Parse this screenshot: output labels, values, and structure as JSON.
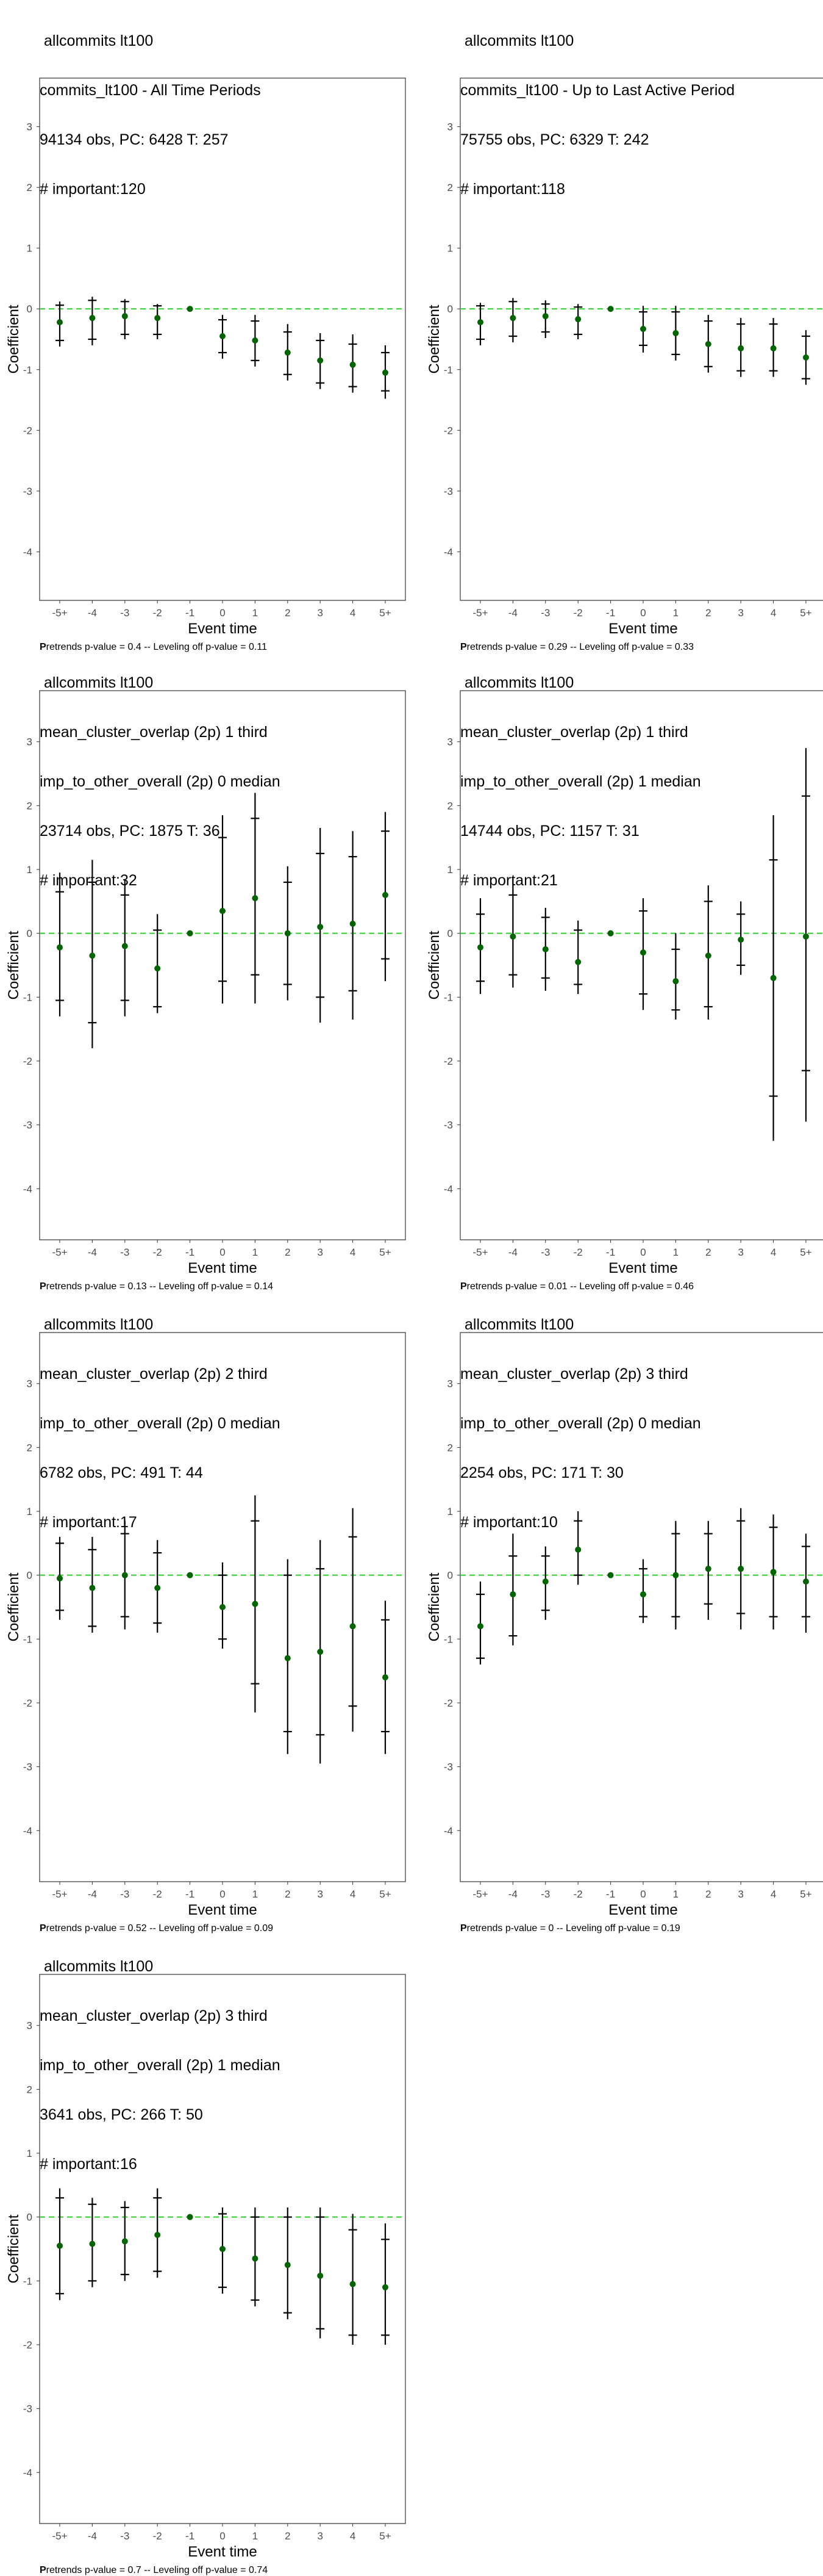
{
  "style": {
    "point_color": "#006400",
    "zero_line_color": "#33cc33",
    "bar_color": "#000000"
  },
  "chart_data": [
    {
      "type": "scatter",
      "title_lines": [
        "allcommits lt100",
        "commits_lt100 - All Time Periods",
        "94134 obs, PC: 6428 T: 257",
        "# important:120"
      ],
      "xlabel": "Event time",
      "ylabel": "Coefficient",
      "categories": [
        "-5+",
        "-4",
        "-3",
        "-2",
        "-1",
        "0",
        "1",
        "2",
        "3",
        "4",
        "5+"
      ],
      "ylim": [
        -4.8,
        3.8
      ],
      "yticks": [
        -4,
        -3,
        -2,
        -1,
        0,
        1,
        2,
        3
      ],
      "grid": false,
      "values": [
        -0.22,
        -0.15,
        -0.12,
        -0.15,
        0,
        -0.45,
        -0.52,
        -0.72,
        -0.85,
        -0.92,
        -1.05
      ],
      "ci_inner": [
        [
          -0.52,
          0.06
        ],
        [
          -0.5,
          0.14
        ],
        [
          -0.42,
          0.12
        ],
        [
          -0.42,
          0.05
        ],
        [
          0,
          0
        ],
        [
          -0.72,
          -0.18
        ],
        [
          -0.85,
          -0.2
        ],
        [
          -1.08,
          -0.38
        ],
        [
          -1.22,
          -0.52
        ],
        [
          -1.28,
          -0.58
        ],
        [
          -1.35,
          -0.72
        ]
      ],
      "ci_outer": [
        [
          -0.62,
          0.12
        ],
        [
          -0.6,
          0.2
        ],
        [
          -0.5,
          0.16
        ],
        [
          -0.5,
          0.08
        ],
        [
          0,
          0
        ],
        [
          -0.82,
          -0.1
        ],
        [
          -0.95,
          -0.1
        ],
        [
          -1.18,
          -0.25
        ],
        [
          -1.32,
          -0.4
        ],
        [
          -1.38,
          -0.42
        ],
        [
          -1.48,
          -0.6
        ]
      ],
      "note_bold": "P",
      "note": "retrends p-value = 0.4 -- Leveling off p-value = 0.11"
    },
    {
      "type": "scatter",
      "title_lines": [
        "allcommits lt100",
        "commits_lt100 - Up to Last Active Period",
        "75755 obs, PC: 6329 T: 242",
        "# important:118"
      ],
      "xlabel": "Event time",
      "ylabel": "Coefficient",
      "categories": [
        "-5+",
        "-4",
        "-3",
        "-2",
        "-1",
        "0",
        "1",
        "2",
        "3",
        "4",
        "5+"
      ],
      "ylim": [
        -4.8,
        3.8
      ],
      "yticks": [
        -4,
        -3,
        -2,
        -1,
        0,
        1,
        2,
        3
      ],
      "grid": false,
      "values": [
        -0.22,
        -0.15,
        -0.12,
        -0.17,
        0,
        -0.33,
        -0.4,
        -0.58,
        -0.65,
        -0.65,
        -0.8
      ],
      "ci_inner": [
        [
          -0.5,
          0.05
        ],
        [
          -0.45,
          0.12
        ],
        [
          -0.38,
          0.08
        ],
        [
          -0.42,
          0.03
        ],
        [
          0,
          0
        ],
        [
          -0.6,
          -0.05
        ],
        [
          -0.75,
          -0.05
        ],
        [
          -0.95,
          -0.2
        ],
        [
          -1.02,
          -0.25
        ],
        [
          -1.02,
          -0.25
        ],
        [
          -1.15,
          -0.45
        ]
      ],
      "ci_outer": [
        [
          -0.6,
          0.1
        ],
        [
          -0.55,
          0.18
        ],
        [
          -0.48,
          0.14
        ],
        [
          -0.5,
          0.08
        ],
        [
          0,
          0
        ],
        [
          -0.72,
          0.05
        ],
        [
          -0.85,
          0.05
        ],
        [
          -1.05,
          -0.1
        ],
        [
          -1.12,
          -0.15
        ],
        [
          -1.12,
          -0.15
        ],
        [
          -1.25,
          -0.35
        ]
      ],
      "note_bold": "P",
      "note": "retrends p-value = 0.29 -- Leveling off p-value = 0.33"
    },
    {
      "type": "scatter",
      "title_lines": [
        "allcommits lt100",
        "mean_cluster_overlap (2p) 1 third",
        "imp_to_other_overall (2p) 0 median",
        "23714 obs, PC: 1875 T: 36",
        "# important:32"
      ],
      "xlabel": "Event time",
      "ylabel": "Coefficient",
      "categories": [
        "-5+",
        "-4",
        "-3",
        "-2",
        "-1",
        "0",
        "1",
        "2",
        "3",
        "4",
        "5+"
      ],
      "ylim": [
        -4.8,
        3.8
      ],
      "yticks": [
        -4,
        -3,
        -2,
        -1,
        0,
        1,
        2,
        3
      ],
      "grid": false,
      "values": [
        -0.22,
        -0.35,
        -0.2,
        -0.55,
        0,
        0.35,
        0.55,
        0.0,
        0.1,
        0.15,
        0.6
      ],
      "ci_inner": [
        [
          -1.05,
          0.65
        ],
        [
          -1.4,
          0.8
        ],
        [
          -1.05,
          0.6
        ],
        [
          -1.15,
          0.05
        ],
        [
          0,
          0
        ],
        [
          -0.75,
          1.5
        ],
        [
          -0.65,
          1.8
        ],
        [
          -0.8,
          0.8
        ],
        [
          -1.0,
          1.25
        ],
        [
          -0.9,
          1.2
        ],
        [
          -0.4,
          1.6
        ]
      ],
      "ci_outer": [
        [
          -1.3,
          0.95
        ],
        [
          -1.8,
          1.15
        ],
        [
          -1.3,
          0.85
        ],
        [
          -1.25,
          0.3
        ],
        [
          0,
          0
        ],
        [
          -1.1,
          1.85
        ],
        [
          -1.1,
          2.2
        ],
        [
          -1.05,
          1.05
        ],
        [
          -1.4,
          1.65
        ],
        [
          -1.35,
          1.6
        ],
        [
          -0.75,
          1.9
        ]
      ],
      "note_bold": "P",
      "note": "retrends p-value = 0.13 -- Leveling off p-value = 0.14"
    },
    {
      "type": "scatter",
      "title_lines": [
        "allcommits lt100",
        "mean_cluster_overlap (2p) 1 third",
        "imp_to_other_overall (2p) 1 median",
        "14744 obs, PC: 1157 T: 31",
        "# important:21"
      ],
      "xlabel": "Event time",
      "ylabel": "Coefficient",
      "categories": [
        "-5+",
        "-4",
        "-3",
        "-2",
        "-1",
        "0",
        "1",
        "2",
        "3",
        "4",
        "5+"
      ],
      "ylim": [
        -4.8,
        3.8
      ],
      "yticks": [
        -4,
        -3,
        -2,
        -1,
        0,
        1,
        2,
        3
      ],
      "grid": false,
      "values": [
        -0.22,
        -0.05,
        -0.25,
        -0.45,
        0,
        -0.3,
        -0.75,
        -0.35,
        -0.1,
        -0.7,
        -0.05
      ],
      "ci_inner": [
        [
          -0.75,
          0.3
        ],
        [
          -0.65,
          0.6
        ],
        [
          -0.7,
          0.25
        ],
        [
          -0.8,
          0.05
        ],
        [
          0,
          0
        ],
        [
          -0.95,
          0.35
        ],
        [
          -1.2,
          -0.25
        ],
        [
          -1.15,
          0.5
        ],
        [
          -0.5,
          0.3
        ],
        [
          -2.55,
          1.15
        ],
        [
          -2.15,
          2.15
        ]
      ],
      "ci_outer": [
        [
          -0.95,
          0.55
        ],
        [
          -0.85,
          0.85
        ],
        [
          -0.9,
          0.4
        ],
        [
          -0.95,
          0.2
        ],
        [
          0,
          0
        ],
        [
          -1.2,
          0.55
        ],
        [
          -1.35,
          0.0
        ],
        [
          -1.35,
          0.75
        ],
        [
          -0.65,
          0.5
        ],
        [
          -3.25,
          1.85
        ],
        [
          -2.95,
          2.9
        ]
      ],
      "note_bold": "P",
      "note": "retrends p-value = 0.01 -- Leveling off p-value = 0.46"
    },
    {
      "type": "scatter",
      "title_lines": [
        "allcommits lt100",
        "mean_cluster_overlap (2p) 2 third",
        "imp_to_other_overall (2p) 0 median",
        "6782 obs, PC: 491 T: 44",
        "# important:17"
      ],
      "xlabel": "Event time",
      "ylabel": "Coefficient",
      "categories": [
        "-5+",
        "-4",
        "-3",
        "-2",
        "-1",
        "0",
        "1",
        "2",
        "3",
        "4",
        "5+"
      ],
      "ylim": [
        -4.8,
        3.8
      ],
      "yticks": [
        -4,
        -3,
        -2,
        -1,
        0,
        1,
        2,
        3
      ],
      "grid": false,
      "values": [
        -0.05,
        -0.2,
        0.0,
        -0.2,
        0,
        -0.5,
        -0.45,
        -1.3,
        -1.2,
        -0.8,
        -1.6
      ],
      "ci_inner": [
        [
          -0.55,
          0.5
        ],
        [
          -0.8,
          0.4
        ],
        [
          -0.65,
          0.65
        ],
        [
          -0.75,
          0.35
        ],
        [
          0,
          0
        ],
        [
          -1.0,
          0.0
        ],
        [
          -1.7,
          0.85
        ],
        [
          -2.45,
          0.0
        ],
        [
          -2.5,
          0.1
        ],
        [
          -2.05,
          0.6
        ],
        [
          -2.45,
          -0.7
        ]
      ],
      "ci_outer": [
        [
          -0.7,
          0.6
        ],
        [
          -0.9,
          0.6
        ],
        [
          -0.85,
          0.85
        ],
        [
          -0.9,
          0.55
        ],
        [
          0,
          0
        ],
        [
          -1.15,
          0.2
        ],
        [
          -2.15,
          1.25
        ],
        [
          -2.8,
          0.25
        ],
        [
          -2.95,
          0.55
        ],
        [
          -2.45,
          1.05
        ],
        [
          -2.8,
          -0.4
        ]
      ],
      "note_bold": "P",
      "note": "retrends p-value = 0.52 -- Leveling off p-value = 0.09"
    },
    {
      "type": "scatter",
      "title_lines": [
        "allcommits lt100",
        "mean_cluster_overlap (2p) 3 third",
        "imp_to_other_overall (2p) 0 median",
        "2254 obs, PC: 171 T: 30",
        "# important:10"
      ],
      "xlabel": "Event time",
      "ylabel": "Coefficient",
      "categories": [
        "-5+",
        "-4",
        "-3",
        "-2",
        "-1",
        "0",
        "1",
        "2",
        "3",
        "4",
        "5+"
      ],
      "ylim": [
        -4.8,
        3.8
      ],
      "yticks": [
        -4,
        -3,
        -2,
        -1,
        0,
        1,
        2,
        3
      ],
      "grid": false,
      "values": [
        -0.8,
        -0.3,
        -0.1,
        0.4,
        0,
        -0.3,
        0.0,
        0.1,
        0.1,
        0.05,
        -0.1
      ],
      "ci_inner": [
        [
          -1.3,
          -0.3
        ],
        [
          -0.95,
          0.3
        ],
        [
          -0.55,
          0.3
        ],
        [
          0.0,
          0.85
        ],
        [
          0,
          0
        ],
        [
          -0.65,
          0.1
        ],
        [
          -0.65,
          0.65
        ],
        [
          -0.45,
          0.65
        ],
        [
          -0.6,
          0.85
        ],
        [
          -0.65,
          0.75
        ],
        [
          -0.65,
          0.45
        ]
      ],
      "ci_outer": [
        [
          -1.4,
          -0.1
        ],
        [
          -1.1,
          0.65
        ],
        [
          -0.7,
          0.45
        ],
        [
          -0.15,
          1.0
        ],
        [
          0,
          0
        ],
        [
          -0.75,
          0.25
        ],
        [
          -0.85,
          0.85
        ],
        [
          -0.7,
          0.85
        ],
        [
          -0.85,
          1.05
        ],
        [
          -0.85,
          0.95
        ],
        [
          -0.9,
          0.65
        ]
      ],
      "note_bold": "P",
      "note": "retrends p-value = 0 -- Leveling off p-value = 0.19"
    },
    {
      "type": "scatter",
      "title_lines": [
        "allcommits lt100",
        "mean_cluster_overlap (2p) 3 third",
        "imp_to_other_overall (2p) 1 median",
        "3641 obs, PC: 266 T: 50",
        "# important:16"
      ],
      "xlabel": "Event time",
      "ylabel": "Coefficient",
      "categories": [
        "-5+",
        "-4",
        "-3",
        "-2",
        "-1",
        "0",
        "1",
        "2",
        "3",
        "4",
        "5+"
      ],
      "ylim": [
        -4.8,
        3.8
      ],
      "yticks": [
        -4,
        -3,
        -2,
        -1,
        0,
        1,
        2,
        3
      ],
      "grid": false,
      "values": [
        -0.45,
        -0.42,
        -0.38,
        -0.28,
        0,
        -0.5,
        -0.65,
        -0.75,
        -0.92,
        -1.05,
        -1.1
      ],
      "ci_inner": [
        [
          -1.2,
          0.3
        ],
        [
          -1.0,
          0.2
        ],
        [
          -0.9,
          0.15
        ],
        [
          -0.85,
          0.3
        ],
        [
          0,
          0
        ],
        [
          -1.1,
          0.05
        ],
        [
          -1.3,
          0.0
        ],
        [
          -1.5,
          0.0
        ],
        [
          -1.75,
          0.0
        ],
        [
          -1.85,
          -0.2
        ],
        [
          -1.85,
          -0.35
        ]
      ],
      "ci_outer": [
        [
          -1.3,
          0.45
        ],
        [
          -1.1,
          0.3
        ],
        [
          -1.0,
          0.25
        ],
        [
          -0.95,
          0.45
        ],
        [
          0,
          0
        ],
        [
          -1.2,
          0.15
        ],
        [
          -1.4,
          0.15
        ],
        [
          -1.6,
          0.15
        ],
        [
          -1.9,
          0.15
        ],
        [
          -2.0,
          0.05
        ],
        [
          -2.0,
          -0.1
        ]
      ],
      "note_bold": "P",
      "note": "retrends p-value = 0.7 -- Leveling off p-value = 0.74"
    }
  ]
}
